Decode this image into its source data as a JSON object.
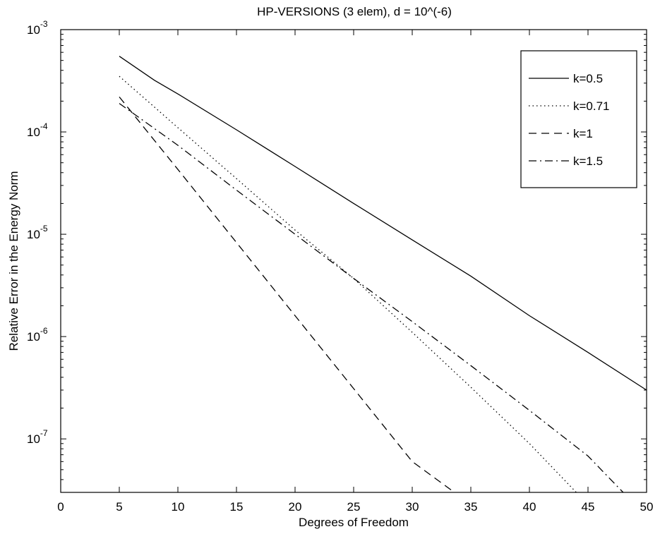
{
  "chart_data": {
    "type": "line",
    "title": "HP-VERSIONS (3 elem), d = 10^(-6)",
    "xlabel": "Degrees of Freedom",
    "ylabel": "Relative Error in the Energy Norm",
    "xlim": [
      0,
      50
    ],
    "ylim": [
      3e-08,
      0.001
    ],
    "yscale": "log",
    "grid": false,
    "legend_position": "top-right",
    "x_ticks": [
      0,
      5,
      10,
      15,
      20,
      25,
      30,
      35,
      40,
      45,
      50
    ],
    "x_tick_labels": [
      "0",
      "5",
      "10",
      "15",
      "20",
      "25",
      "30",
      "35",
      "40",
      "45",
      "50"
    ],
    "y_ticks": [
      {
        "value": 0.001,
        "base": "10",
        "exp": "-3"
      },
      {
        "value": 0.0001,
        "base": "10",
        "exp": "-4"
      },
      {
        "value": 1e-05,
        "base": "10",
        "exp": "-5"
      },
      {
        "value": 1e-06,
        "base": "10",
        "exp": "-6"
      },
      {
        "value": 1e-07,
        "base": "10",
        "exp": "-7"
      }
    ],
    "series": [
      {
        "name": "k=0.5",
        "style": "solid",
        "x": [
          5,
          8,
          10,
          15,
          20,
          25,
          30,
          35,
          40,
          45,
          50
        ],
        "y": [
          0.00055,
          0.00032,
          0.000235,
          0.000105,
          4.6e-05,
          2e-05,
          8.8e-06,
          3.9e-06,
          1.6e-06,
          7e-07,
          3e-07
        ]
      },
      {
        "name": "k=0.71",
        "style": "dotted",
        "x": [
          5,
          10,
          15,
          20,
          25,
          30,
          35,
          40,
          44
        ],
        "y": [
          0.00035,
          0.00011,
          3.5e-05,
          1.1e-05,
          3.7e-06,
          1.1e-06,
          3.2e-07,
          9e-08,
          3e-08
        ]
      },
      {
        "name": "k=1",
        "style": "dashed",
        "x": [
          5,
          10,
          15,
          20,
          25,
          30,
          33.6
        ],
        "y": [
          0.00022,
          4.3e-05,
          8.3e-06,
          1.6e-06,
          3.1e-07,
          6e-08,
          3e-08
        ]
      },
      {
        "name": "k=1.5",
        "style": "dashdot",
        "x": [
          5,
          10,
          15,
          20,
          25,
          30,
          35,
          40,
          45,
          48
        ],
        "y": [
          0.00019,
          7.4e-05,
          2.7e-05,
          1e-05,
          3.7e-06,
          1.4e-06,
          5.2e-07,
          1.9e-07,
          6.8e-08,
          3e-08
        ]
      }
    ]
  }
}
